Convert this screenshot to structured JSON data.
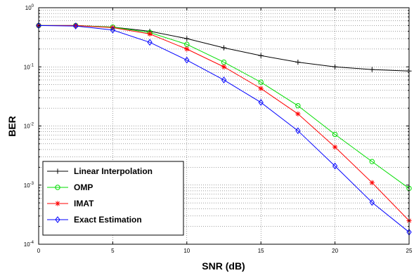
{
  "chart_data": {
    "type": "line",
    "xlabel": "SNR (dB)",
    "ylabel": "BER",
    "xlim": [
      0,
      25
    ],
    "ylim": [
      0.0001,
      1
    ],
    "yscale": "log",
    "grid": true,
    "legend_position": "bottom-left",
    "xticks": [
      "0",
      "5",
      "10",
      "15",
      "20",
      "25"
    ],
    "yticks": [
      {
        "base": "10",
        "exp": "0",
        "value": 1
      },
      {
        "base": "10",
        "exp": "-1",
        "value": 0.1
      },
      {
        "base": "10",
        "exp": "-2",
        "value": 0.01
      },
      {
        "base": "10",
        "exp": "-3",
        "value": 0.001
      },
      {
        "base": "10",
        "exp": "-4",
        "value": 0.0001
      }
    ],
    "x": [
      0,
      2.5,
      5,
      7.5,
      10,
      12.5,
      15,
      17.5,
      20,
      22.5,
      25
    ],
    "series": [
      {
        "name": "Linear Interpolation",
        "color": "#000000",
        "marker": "plus",
        "values": [
          0.5,
          0.5,
          0.47,
          0.4,
          0.3,
          0.21,
          0.155,
          0.12,
          0.1,
          0.09,
          0.085
        ]
      },
      {
        "name": "OMP",
        "color": "#00dd00",
        "marker": "circle",
        "values": [
          0.5,
          0.5,
          0.47,
          0.38,
          0.24,
          0.12,
          0.055,
          0.022,
          0.0072,
          0.0025,
          0.00088
        ]
      },
      {
        "name": "IMAT",
        "color": "#ff0000",
        "marker": "star",
        "values": [
          0.5,
          0.5,
          0.46,
          0.36,
          0.2,
          0.1,
          0.043,
          0.016,
          0.0044,
          0.0011,
          0.00025
        ]
      },
      {
        "name": "Exact Estimation",
        "color": "#0000ff",
        "marker": "diamond",
        "values": [
          0.5,
          0.49,
          0.42,
          0.26,
          0.13,
          0.06,
          0.025,
          0.0083,
          0.0021,
          0.00051,
          0.00016
        ]
      }
    ]
  }
}
